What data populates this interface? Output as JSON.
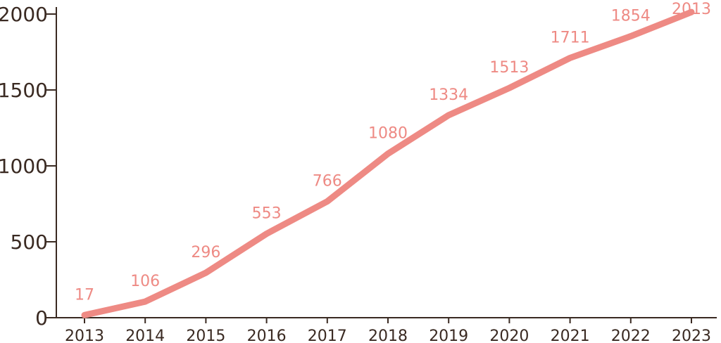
{
  "chart_data": {
    "type": "line",
    "categories": [
      "2013",
      "2014",
      "2015",
      "2016",
      "2017",
      "2018",
      "2019",
      "2020",
      "2021",
      "2022",
      "2023"
    ],
    "series": [
      {
        "values": [
          17,
          106,
          296,
          553,
          766,
          1080,
          1334,
          1513,
          1711,
          1854,
          2013
        ]
      }
    ],
    "data_labels": [
      "17",
      "106",
      "296",
      "553",
      "766",
      "1080",
      "1334",
      "1513",
      "1711",
      "1854",
      "2013"
    ],
    "y_ticks": [
      "0",
      "500",
      "1000",
      "1500",
      "2000"
    ],
    "ylim": [
      0,
      2000
    ],
    "grid": false,
    "line_color": "#ee8a84",
    "axis_color": "#3a2a22"
  }
}
